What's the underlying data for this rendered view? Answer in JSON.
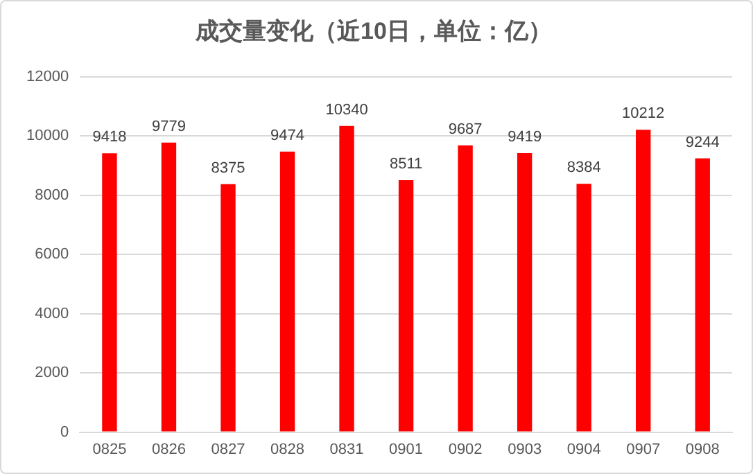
{
  "chart_data": {
    "type": "bar",
    "title": "成交量变化（近10日，单位：亿）",
    "categories": [
      "0825",
      "0826",
      "0827",
      "0828",
      "0831",
      "0901",
      "0902",
      "0903",
      "0904",
      "0907",
      "0908"
    ],
    "values": [
      9418,
      9779,
      8375,
      9474,
      10340,
      8511,
      9687,
      9419,
      8384,
      10212,
      9244
    ],
    "color": "#ff0000",
    "ylim": [
      0,
      12000
    ],
    "yticks": [
      0,
      2000,
      4000,
      6000,
      8000,
      10000,
      12000
    ],
    "grid": "y",
    "data_labels": true,
    "legend": false
  }
}
